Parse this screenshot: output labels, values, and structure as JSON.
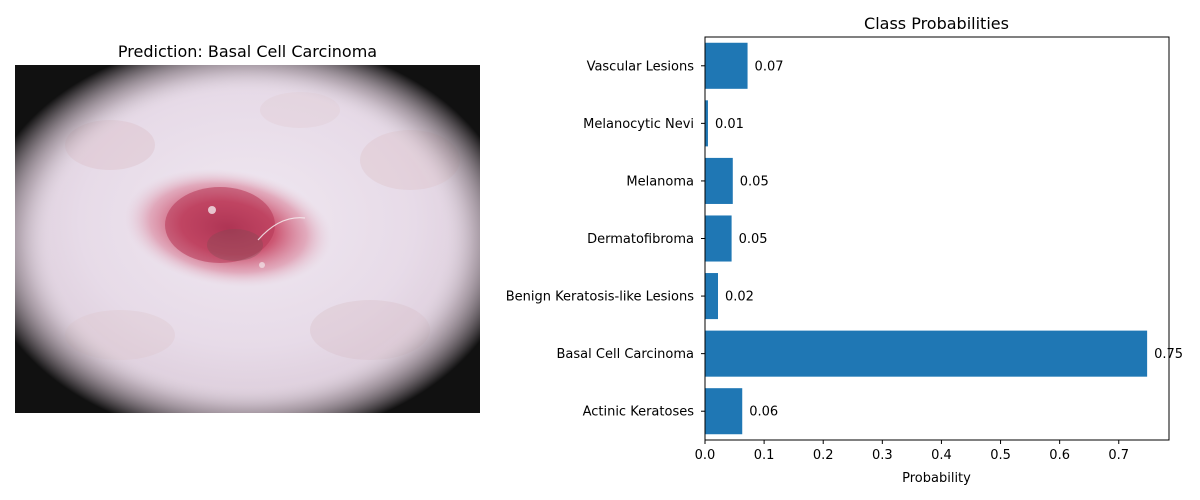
{
  "image_panel": {
    "title": "Prediction: Basal Cell Carcinoma",
    "image_content": "dermoscopic-lesion-photo"
  },
  "colors": {
    "bar": "#1f77b4",
    "axis": "#000000",
    "background": "#ffffff",
    "skin": "#e9ddea",
    "lesion": "#c83e5c",
    "vignette": "#111111"
  },
  "chart_data": {
    "type": "bar",
    "orientation": "horizontal",
    "title": "Class Probabilities",
    "xlabel": "Probability",
    "ylabel": "",
    "categories": [
      "Actinic Keratoses",
      "Basal Cell Carcinoma",
      "Benign Keratosis-like Lesions",
      "Dermatofibroma",
      "Melanoma",
      "Melanocytic Nevi",
      "Vascular Lesions"
    ],
    "values": [
      0.063,
      0.748,
      0.022,
      0.045,
      0.047,
      0.005,
      0.072
    ],
    "value_labels": [
      "0.06",
      "0.75",
      "0.02",
      "0.05",
      "0.05",
      "0.01",
      "0.07"
    ],
    "xlim": [
      0,
      0.785
    ],
    "xticks": [
      0,
      0.1,
      0.2,
      0.3,
      0.4,
      0.5,
      0.6,
      0.7
    ],
    "xtick_labels": [
      "0.0",
      "0.1",
      "0.2",
      "0.3",
      "0.4",
      "0.5",
      "0.6",
      "0.7"
    ],
    "grid": false,
    "legend": "none"
  }
}
